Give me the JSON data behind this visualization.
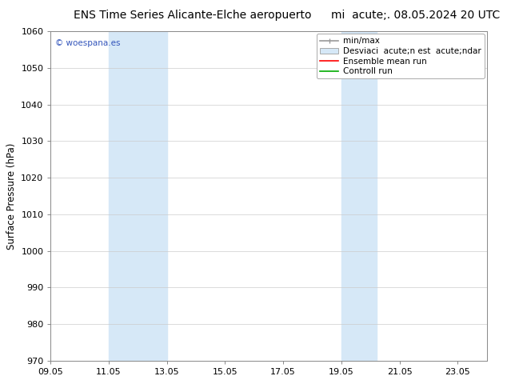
{
  "title_left": "ENS Time Series Alicante-Elche aeropuerto",
  "title_right": "mi  acute;. 08.05.2024 20 UTC",
  "ylabel": "Surface Pressure (hPa)",
  "ylim": [
    970,
    1060
  ],
  "yticks": [
    970,
    980,
    990,
    1000,
    1010,
    1020,
    1030,
    1040,
    1050,
    1060
  ],
  "xlim_start": 9.05,
  "xlim_end": 24.05,
  "xticks": [
    9.05,
    11.05,
    13.05,
    15.05,
    17.05,
    19.05,
    21.05,
    23.05
  ],
  "xtick_labels": [
    "09.05",
    "11.05",
    "13.05",
    "15.05",
    "17.05",
    "19.05",
    "21.05",
    "23.05"
  ],
  "shaded_bands": [
    {
      "x_start": 11.05,
      "x_end": 13.05
    },
    {
      "x_start": 19.05,
      "x_end": 20.25
    }
  ],
  "shade_color": "#d6e8f7",
  "background_color": "#ffffff",
  "watermark_text": "© woespana.es",
  "watermark_color": "#3355bb",
  "legend_minmax_color": "#999999",
  "legend_std_color": "#d6e8f7",
  "legend_ensemble_color": "#ff0000",
  "legend_control_color": "#00aa00",
  "legend_label_minmax": "min/max",
  "legend_label_std": "Desviaci  acute;n est  acute;ndar",
  "legend_label_ensemble": "Ensemble mean run",
  "legend_label_control": "Controll run",
  "title_fontsize": 10,
  "axis_fontsize": 8.5,
  "tick_fontsize": 8,
  "legend_fontsize": 7.5
}
